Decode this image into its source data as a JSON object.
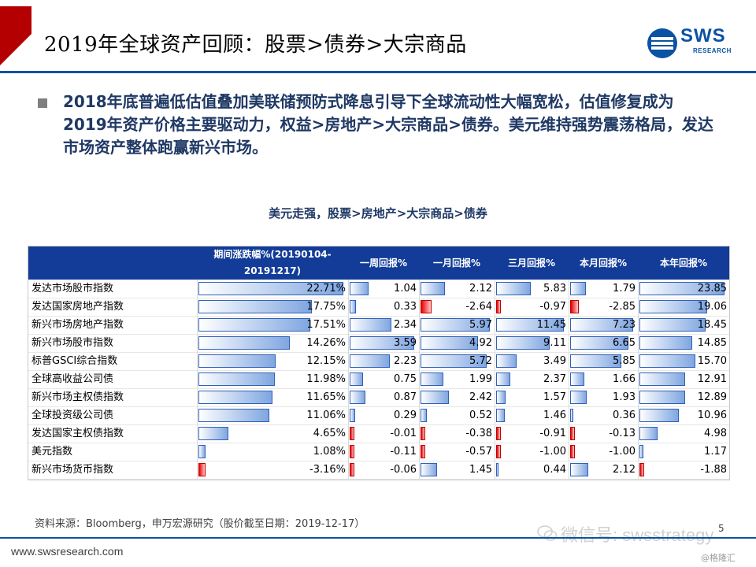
{
  "slide": {
    "title": "2019年全球资产回顾：股票>债券>大宗商品",
    "logo_main": "SWS",
    "logo_sub": "RESEARCH",
    "bullet": "2018年底普遍低估值叠加美联储预防式降息引导下全球流动性大幅宽松，估值修复成为2019年资产价格主要驱动力，权益>房地产>大宗商品>债券。美元维持强势震荡格局，发达市场资产整体跑赢新兴市场。",
    "chart_title": "美元走强，股票>房地产>大宗商品>债券",
    "source": "资料来源：Bloomberg，申万宏源研究（股价截至日期：2019-12-17）",
    "footer_url": "www.swsresearch.com",
    "wechat": "微信号: swsstrategy",
    "page_number": "5",
    "gelonghui": "@格隆汇",
    "colors": {
      "brand_blue": "#0a52a3",
      "header_bg": "#123c98",
      "accent_red": "#b40000"
    }
  },
  "chart_data": {
    "type": "table",
    "columns": [
      "期间涨跌幅%(20190104-20191217)",
      "一周回报%",
      "一月回报%",
      "三月回报%",
      "本月回报%",
      "本年回报%"
    ],
    "rows": [
      {
        "name": "发达市场股市指数",
        "values": [
          "22.71%",
          "1.04",
          "2.12",
          "5.83",
          "1.79",
          "23.85"
        ],
        "nums": [
          22.71,
          1.04,
          2.12,
          5.83,
          1.79,
          23.85
        ]
      },
      {
        "name": "发达国家房地产指数",
        "values": [
          "17.75%",
          "0.33",
          "-2.64",
          "-0.97",
          "-2.85",
          "19.06"
        ],
        "nums": [
          17.75,
          0.33,
          -2.64,
          -0.97,
          -2.85,
          19.06
        ]
      },
      {
        "name": "新兴市场房地产指数",
        "values": [
          "17.51%",
          "2.34",
          "5.97",
          "11.45",
          "7.23",
          "18.45"
        ],
        "nums": [
          17.51,
          2.34,
          5.97,
          11.45,
          7.23,
          18.45
        ]
      },
      {
        "name": "新兴市场股市指数",
        "values": [
          "14.26%",
          "3.59",
          "4.92",
          "9.11",
          "6.65",
          "14.85"
        ],
        "nums": [
          14.26,
          3.59,
          4.92,
          9.11,
          6.65,
          14.85
        ]
      },
      {
        "name": "标普GSCI综合指数",
        "values": [
          "12.15%",
          "2.23",
          "5.72",
          "3.49",
          "5.85",
          "15.70"
        ],
        "nums": [
          12.15,
          2.23,
          5.72,
          3.49,
          5.85,
          15.7
        ]
      },
      {
        "name": "全球高收益公司债",
        "values": [
          "11.98%",
          "0.75",
          "1.99",
          "2.37",
          "1.66",
          "12.91"
        ],
        "nums": [
          11.98,
          0.75,
          1.99,
          2.37,
          1.66,
          12.91
        ]
      },
      {
        "name": "新兴市场主权债指数",
        "values": [
          "11.65%",
          "0.87",
          "2.42",
          "1.57",
          "1.93",
          "12.89"
        ],
        "nums": [
          11.65,
          0.87,
          2.42,
          1.57,
          1.93,
          12.89
        ]
      },
      {
        "name": "全球投资级公司债",
        "values": [
          "11.06%",
          "0.29",
          "0.52",
          "1.46",
          "0.36",
          "10.96"
        ],
        "nums": [
          11.06,
          0.29,
          0.52,
          1.46,
          0.36,
          10.96
        ]
      },
      {
        "name": "发达国家主权债指数",
        "values": [
          "4.65%",
          "-0.01",
          "-0.38",
          "-0.91",
          "-0.13",
          "4.98"
        ],
        "nums": [
          4.65,
          -0.01,
          -0.38,
          -0.91,
          -0.13,
          4.98
        ]
      },
      {
        "name": "美元指数",
        "values": [
          "1.08%",
          "-0.11",
          "-0.57",
          "-1.00",
          "-1.00",
          "1.17"
        ],
        "nums": [
          1.08,
          -0.11,
          -0.57,
          -1.0,
          -1.0,
          1.17
        ]
      },
      {
        "name": "新兴市场货币指数",
        "values": [
          "-3.16%",
          "-0.06",
          "1.45",
          "0.44",
          "2.12",
          "-1.88"
        ],
        "nums": [
          -3.16,
          -0.06,
          1.45,
          0.44,
          2.12,
          -1.88
        ]
      }
    ]
  }
}
